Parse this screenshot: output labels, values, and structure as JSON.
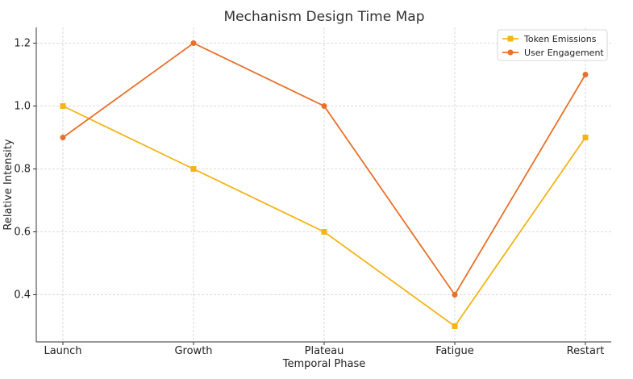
{
  "chart_data": {
    "type": "line",
    "title": "Mechanism Design Time Map",
    "xlabel": "Temporal Phase",
    "ylabel": "Relative Intensity",
    "categories": [
      "Launch",
      "Growth",
      "Plateau",
      "Fatigue",
      "Restart"
    ],
    "ylim": [
      0.25,
      1.25
    ],
    "yticks": [
      0.4,
      0.6,
      0.8,
      1.0,
      1.2
    ],
    "ytick_labels": [
      "0.4",
      "0.6",
      "0.8",
      "1.0",
      "1.2"
    ],
    "grid": true,
    "legend_position": "top-right",
    "series": [
      {
        "name": "Token Emissions",
        "values": [
          1.0,
          0.8,
          0.6,
          0.3,
          0.9
        ],
        "color": "#f2b418",
        "marker": "square"
      },
      {
        "name": "User Engagement",
        "values": [
          0.9,
          1.2,
          1.0,
          0.4,
          1.1
        ],
        "color": "#e8702a",
        "marker": "circle"
      }
    ]
  }
}
